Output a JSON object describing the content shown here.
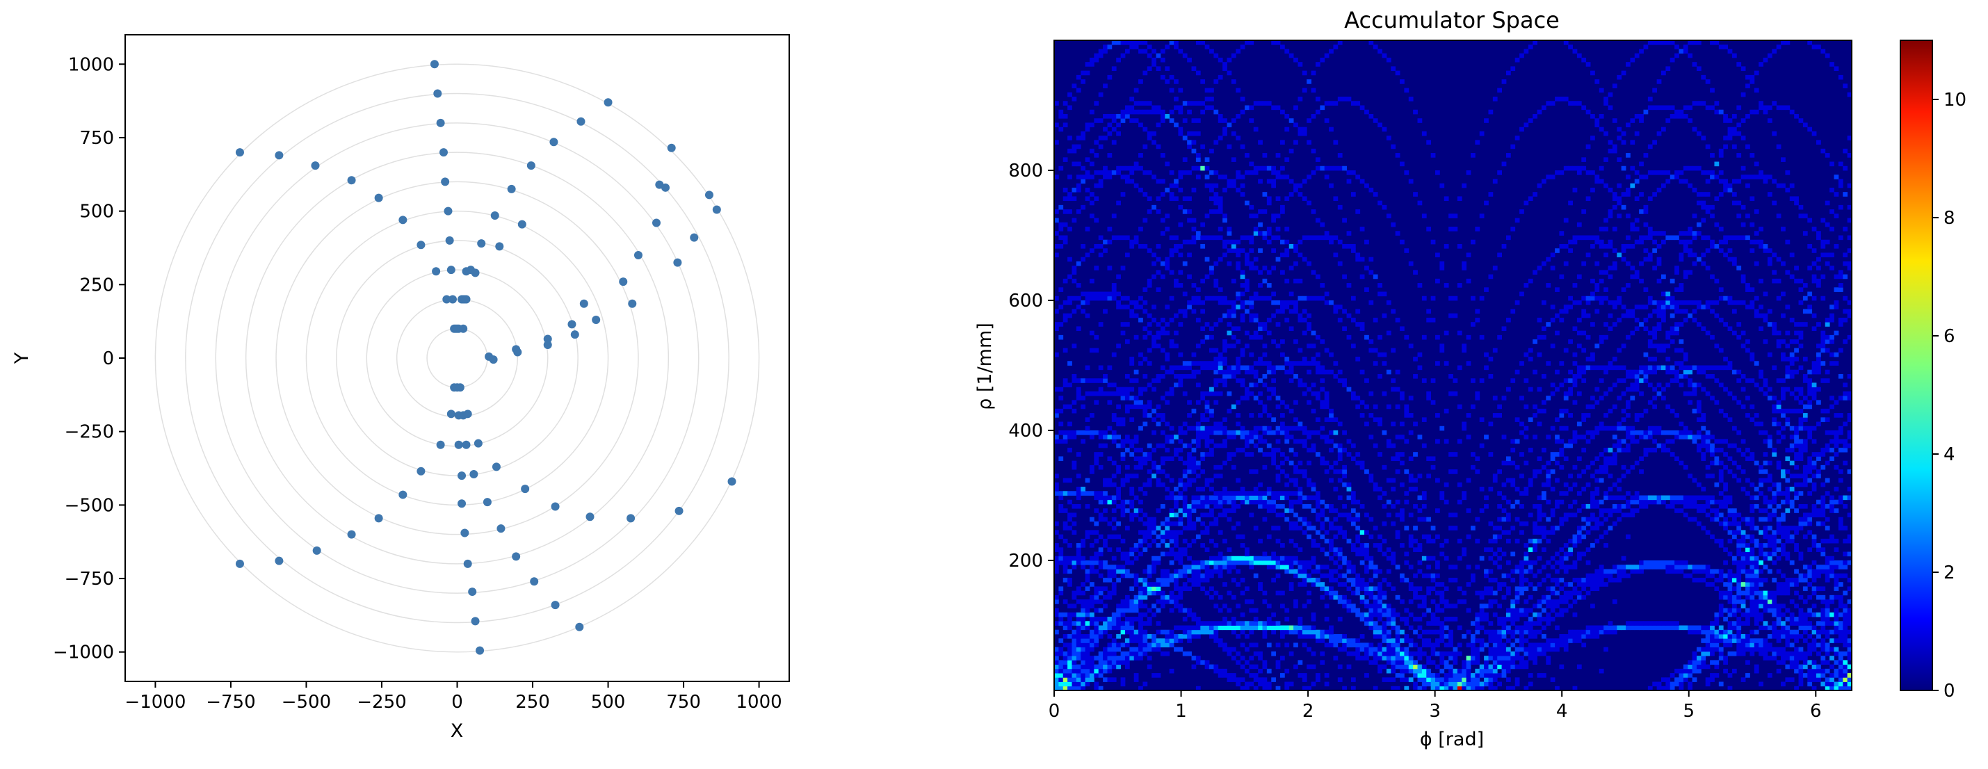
{
  "figure": {
    "panels": [
      {
        "title": "",
        "xlabel": "X",
        "ylabel": "Y"
      },
      {
        "title": "Accumulator Space",
        "xlabel": "ϕ [rad]",
        "ylabel": "ρ [1/mm]"
      }
    ]
  },
  "chart_data": [
    {
      "type": "scatter",
      "title": "",
      "xlabel": "X",
      "ylabel": "Y",
      "xlim": [
        -1100,
        1100
      ],
      "ylim": [
        -1100,
        1100
      ],
      "xticks": [
        -1000,
        -750,
        -500,
        -250,
        0,
        250,
        500,
        750,
        1000
      ],
      "yticks": [
        -1000,
        -750,
        -500,
        -250,
        0,
        250,
        500,
        750,
        1000
      ],
      "xtick_labels": [
        "−1000",
        "−750",
        "−500",
        "−250",
        "0",
        "250",
        "500",
        "750",
        "1000"
      ],
      "ytick_labels": [
        "−1000",
        "−750",
        "−500",
        "−250",
        "0",
        "250",
        "500",
        "750",
        "1000"
      ],
      "grid": "concentric circles",
      "circle_radii": [
        100,
        200,
        300,
        400,
        500,
        600,
        700,
        800,
        900,
        1000
      ],
      "marker_color": "#3f77ae",
      "circle_color": "#e0e0e0",
      "points": [
        [
          -75,
          1000
        ],
        [
          -65,
          900
        ],
        [
          -55,
          800
        ],
        [
          -45,
          700
        ],
        [
          -40,
          600
        ],
        [
          -30,
          500
        ],
        [
          -25,
          400
        ],
        [
          -20,
          300
        ],
        [
          -15,
          200
        ],
        [
          -10,
          100
        ],
        [
          -720,
          700
        ],
        [
          -590,
          690
        ],
        [
          -470,
          655
        ],
        [
          -350,
          605
        ],
        [
          -260,
          545
        ],
        [
          -180,
          470
        ],
        [
          -120,
          385
        ],
        [
          -70,
          295
        ],
        [
          -35,
          200
        ],
        [
          5,
          100
        ],
        [
          500,
          870
        ],
        [
          410,
          805
        ],
        [
          320,
          735
        ],
        [
          245,
          655
        ],
        [
          180,
          575
        ],
        [
          125,
          485
        ],
        [
          80,
          390
        ],
        [
          45,
          300
        ],
        [
          20,
          200
        ],
        [
          -5,
          100
        ],
        [
          710,
          715
        ],
        [
          670,
          590
        ],
        [
          690,
          580
        ],
        [
          660,
          460
        ],
        [
          600,
          350
        ],
        [
          550,
          260
        ],
        [
          420,
          185
        ],
        [
          380,
          115
        ],
        [
          460,
          130
        ],
        [
          390,
          80
        ],
        [
          835,
          555
        ],
        [
          860,
          505
        ],
        [
          785,
          410
        ],
        [
          730,
          325
        ],
        [
          580,
          185
        ],
        [
          300,
          65
        ],
        [
          300,
          45
        ],
        [
          195,
          30
        ],
        [
          200,
          20
        ],
        [
          105,
          5
        ],
        [
          15,
          200
        ],
        [
          25,
          200
        ],
        [
          30,
          200
        ],
        [
          0,
          100
        ],
        [
          20,
          100
        ],
        [
          30,
          295
        ],
        [
          60,
          290
        ],
        [
          140,
          380
        ],
        [
          215,
          455
        ],
        [
          120,
          -5
        ],
        [
          -10,
          -100
        ],
        [
          0,
          -100
        ],
        [
          10,
          -100
        ],
        [
          -20,
          -190
        ],
        [
          5,
          -195
        ],
        [
          20,
          -195
        ],
        [
          35,
          -190
        ],
        [
          5,
          -295
        ],
        [
          30,
          -295
        ],
        [
          70,
          -290
        ],
        [
          -55,
          -295
        ],
        [
          -120,
          -385
        ],
        [
          -180,
          -465
        ],
        [
          -260,
          -545
        ],
        [
          -350,
          -600
        ],
        [
          -465,
          -655
        ],
        [
          -590,
          -690
        ],
        [
          -720,
          -700
        ],
        [
          15,
          -400
        ],
        [
          55,
          -395
        ],
        [
          130,
          -370
        ],
        [
          225,
          -445
        ],
        [
          325,
          -505
        ],
        [
          440,
          -540
        ],
        [
          575,
          -545
        ],
        [
          735,
          -520
        ],
        [
          910,
          -420
        ],
        [
          15,
          -495
        ],
        [
          100,
          -490
        ],
        [
          25,
          -595
        ],
        [
          145,
          -580
        ],
        [
          35,
          -700
        ],
        [
          195,
          -675
        ],
        [
          50,
          -795
        ],
        [
          255,
          -760
        ],
        [
          60,
          -895
        ],
        [
          325,
          -840
        ],
        [
          75,
          -995
        ],
        [
          405,
          -915
        ]
      ]
    },
    {
      "type": "heatmap",
      "title": "Accumulator Space",
      "xlabel": "ϕ [rad]",
      "ylabel": "ρ [1/mm]",
      "xlim": [
        0,
        6.2832
      ],
      "ylim": [
        0,
        1000
      ],
      "xticks": [
        0,
        1,
        2,
        3,
        4,
        5,
        6
      ],
      "yticks": [
        200,
        400,
        600,
        800
      ],
      "colormap": "jet",
      "colorbar_range": [
        0,
        11
      ],
      "colorbar_ticks": [
        0,
        2,
        4,
        6,
        8,
        10
      ],
      "bins": {
        "phi": 180,
        "rho": 150
      },
      "description_values": {
        "background_count": 0,
        "sinusoid_traces_from_points": true,
        "bright_rows_rho": [
          100,
          200,
          300,
          400,
          500,
          600,
          700,
          800,
          900,
          1000
        ],
        "peak_count_approx": 9
      }
    }
  ]
}
